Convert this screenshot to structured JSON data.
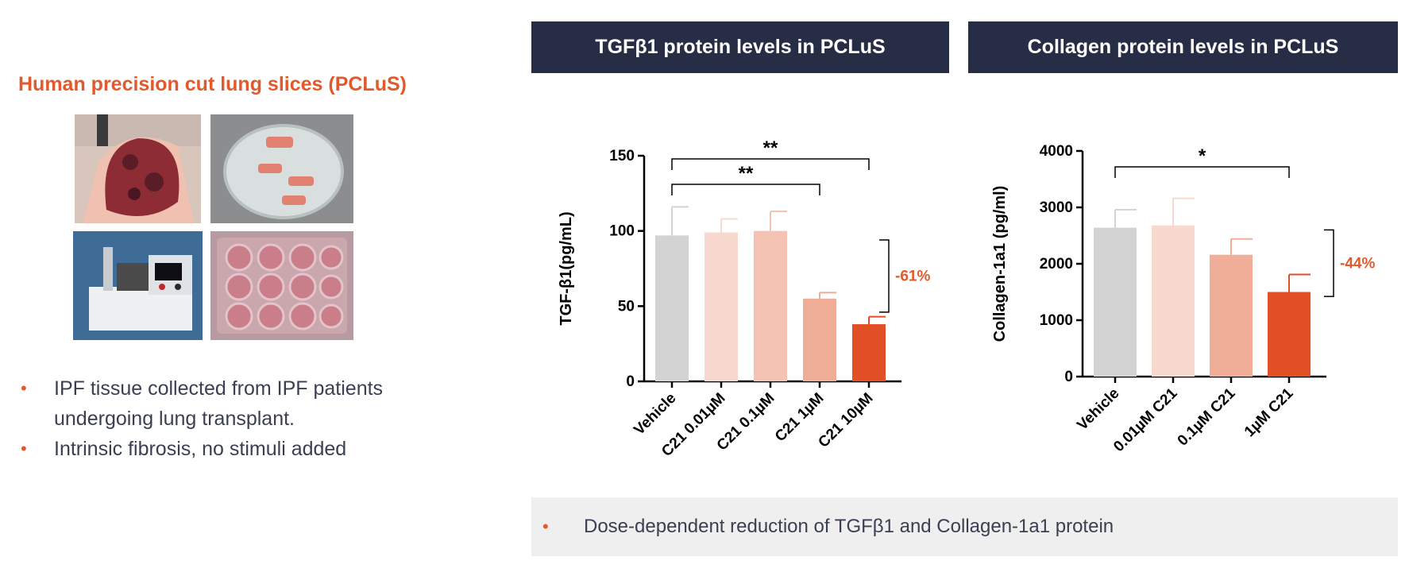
{
  "left": {
    "title": "Human precision cut lung slices (PCLuS)",
    "bullets": [
      "IPF tissue collected from IPF patients undergoing lung transplant.",
      "Intrinsic fibrosis, no stimuli added"
    ],
    "bullet_marker": "•"
  },
  "colors": {
    "accent": "#e25a2c",
    "header_bg": "#262d45",
    "vehicle": "#d3d3d3",
    "shade_1": "#f8d9cf",
    "shade_2": "#f4c3b3",
    "shade_3": "#f0ad97",
    "shade_4": "#e24e25"
  },
  "chart_data": [
    {
      "type": "bar",
      "title": "TGFβ1 protein levels in PCLuS",
      "ylabel": "TGF-β1(pg/mL)",
      "xlabel": "",
      "ylim": [
        0,
        150
      ],
      "yticks": [
        0,
        50,
        100,
        150
      ],
      "categories": [
        "Vehicle",
        "C21 0.01µM",
        "C21 0.1µM",
        "C21 1µM",
        "C21 10µM"
      ],
      "values": [
        97,
        99,
        100,
        55,
        38
      ],
      "errors": [
        19,
        9,
        13,
        4,
        5
      ],
      "significance": [
        {
          "from": 0,
          "to": 3,
          "label": "**"
        },
        {
          "from": 0,
          "to": 4,
          "label": "**"
        }
      ],
      "reduction": {
        "label": "-61%",
        "from_value": 94,
        "to_value": 46
      },
      "grid": false,
      "legend": "none"
    },
    {
      "type": "bar",
      "title": "Collagen protein levels in PCLuS",
      "ylabel": "Collagen-1a1 (pg/ml)",
      "xlabel": "",
      "ylim": [
        0,
        4000
      ],
      "yticks": [
        0,
        1000,
        2000,
        3000,
        4000
      ],
      "categories": [
        "Vehicle",
        "0.01µM C21",
        "0.1µM C21",
        "1µM C21"
      ],
      "values": [
        2640,
        2680,
        2160,
        1500
      ],
      "errors": [
        320,
        480,
        280,
        310
      ],
      "significance": [
        {
          "from": 0,
          "to": 3,
          "label": "*"
        }
      ],
      "reduction": {
        "label": "-44%",
        "from_value": 2600,
        "to_value": 1420
      },
      "grid": false,
      "legend": "none"
    }
  ],
  "footer": {
    "bullet_marker": "•",
    "text": "Dose-dependent reduction of TGFβ1 and Collagen-1a1 protein"
  }
}
